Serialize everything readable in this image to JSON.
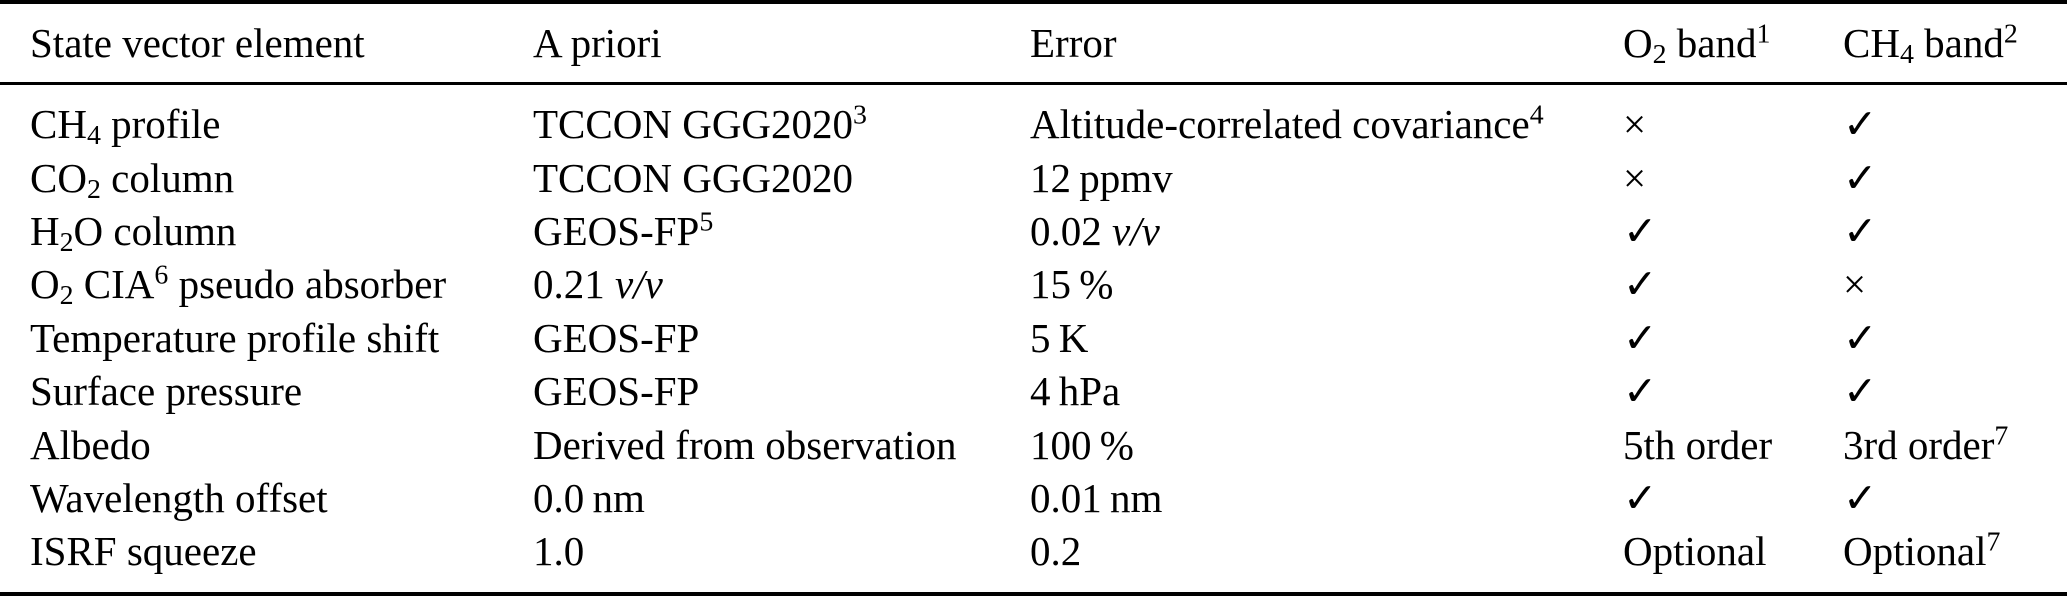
{
  "colors": {
    "text": "#000000",
    "background": "#ffffff",
    "rule": "#000000"
  },
  "table": {
    "header": [
      {
        "name": "state-vector-element",
        "segs": [
          {
            "t": "text",
            "v": "State vector element"
          }
        ]
      },
      {
        "name": "a-priori",
        "segs": [
          {
            "t": "text",
            "v": "A priori"
          }
        ]
      },
      {
        "name": "error",
        "segs": [
          {
            "t": "text",
            "v": "Error"
          }
        ]
      },
      {
        "name": "o2-band",
        "segs": [
          {
            "t": "text",
            "v": "O"
          },
          {
            "t": "sub",
            "v": "2"
          },
          {
            "t": "text",
            "v": " band"
          },
          {
            "t": "sup",
            "v": "1"
          }
        ]
      },
      {
        "name": "ch4-band",
        "segs": [
          {
            "t": "text",
            "v": "CH"
          },
          {
            "t": "sub",
            "v": "4"
          },
          {
            "t": "text",
            "v": " band"
          },
          {
            "t": "sup",
            "v": "2"
          }
        ]
      }
    ],
    "rows": [
      {
        "cells": [
          [
            {
              "t": "text",
              "v": "CH"
            },
            {
              "t": "sub",
              "v": "4"
            },
            {
              "t": "text",
              "v": " profile"
            }
          ],
          [
            {
              "t": "text",
              "v": "TCCON GGG2020"
            },
            {
              "t": "sup",
              "v": "3"
            }
          ],
          [
            {
              "t": "text",
              "v": "Altitude-correlated covariance"
            },
            {
              "t": "sup",
              "v": "4"
            }
          ],
          [
            {
              "t": "text",
              "v": "×"
            }
          ],
          [
            {
              "t": "text",
              "v": "✓"
            }
          ]
        ]
      },
      {
        "cells": [
          [
            {
              "t": "text",
              "v": "CO"
            },
            {
              "t": "sub",
              "v": "2"
            },
            {
              "t": "text",
              "v": " column"
            }
          ],
          [
            {
              "t": "text",
              "v": "TCCON GGG2020"
            }
          ],
          [
            {
              "t": "text",
              "v": "12 ppmv"
            }
          ],
          [
            {
              "t": "text",
              "v": "×"
            }
          ],
          [
            {
              "t": "text",
              "v": "✓"
            }
          ]
        ]
      },
      {
        "cells": [
          [
            {
              "t": "text",
              "v": "H"
            },
            {
              "t": "sub",
              "v": "2"
            },
            {
              "t": "text",
              "v": "O column"
            }
          ],
          [
            {
              "t": "text",
              "v": "GEOS-FP"
            },
            {
              "t": "sup",
              "v": "5"
            }
          ],
          [
            {
              "t": "text",
              "v": "0.02 "
            },
            {
              "t": "it",
              "v": "v/v"
            }
          ],
          [
            {
              "t": "text",
              "v": "✓"
            }
          ],
          [
            {
              "t": "text",
              "v": "✓"
            }
          ]
        ]
      },
      {
        "cells": [
          [
            {
              "t": "text",
              "v": "O"
            },
            {
              "t": "sub",
              "v": "2"
            },
            {
              "t": "text",
              "v": " CIA"
            },
            {
              "t": "sup",
              "v": "6"
            },
            {
              "t": "text",
              "v": " pseudo absorber"
            }
          ],
          [
            {
              "t": "text",
              "v": "0.21 "
            },
            {
              "t": "it",
              "v": "v/v"
            }
          ],
          [
            {
              "t": "text",
              "v": "15 %"
            }
          ],
          [
            {
              "t": "text",
              "v": "✓"
            }
          ],
          [
            {
              "t": "text",
              "v": "×"
            }
          ]
        ]
      },
      {
        "cells": [
          [
            {
              "t": "text",
              "v": "Temperature profile shift"
            }
          ],
          [
            {
              "t": "text",
              "v": "GEOS-FP"
            }
          ],
          [
            {
              "t": "text",
              "v": "5 K"
            }
          ],
          [
            {
              "t": "text",
              "v": "✓"
            }
          ],
          [
            {
              "t": "text",
              "v": "✓"
            }
          ]
        ]
      },
      {
        "cells": [
          [
            {
              "t": "text",
              "v": "Surface pressure"
            }
          ],
          [
            {
              "t": "text",
              "v": "GEOS-FP"
            }
          ],
          [
            {
              "t": "text",
              "v": "4 hPa"
            }
          ],
          [
            {
              "t": "text",
              "v": "✓"
            }
          ],
          [
            {
              "t": "text",
              "v": "✓"
            }
          ]
        ]
      },
      {
        "cells": [
          [
            {
              "t": "text",
              "v": "Albedo"
            }
          ],
          [
            {
              "t": "text",
              "v": "Derived from observation"
            }
          ],
          [
            {
              "t": "text",
              "v": "100 %"
            }
          ],
          [
            {
              "t": "text",
              "v": "5th order"
            }
          ],
          [
            {
              "t": "text",
              "v": "3rd order"
            },
            {
              "t": "sup",
              "v": "7"
            }
          ]
        ]
      },
      {
        "cells": [
          [
            {
              "t": "text",
              "v": "Wavelength offset"
            }
          ],
          [
            {
              "t": "text",
              "v": "0.0 nm"
            }
          ],
          [
            {
              "t": "text",
              "v": "0.01 nm"
            }
          ],
          [
            {
              "t": "text",
              "v": "✓"
            }
          ],
          [
            {
              "t": "text",
              "v": "✓"
            }
          ]
        ]
      },
      {
        "cells": [
          [
            {
              "t": "text",
              "v": "ISRF squeeze"
            }
          ],
          [
            {
              "t": "text",
              "v": "1.0"
            }
          ],
          [
            {
              "t": "text",
              "v": "0.2"
            }
          ],
          [
            {
              "t": "text",
              "v": "Optional"
            }
          ],
          [
            {
              "t": "text",
              "v": "Optional"
            },
            {
              "t": "sup",
              "v": "7"
            }
          ]
        ]
      }
    ]
  }
}
